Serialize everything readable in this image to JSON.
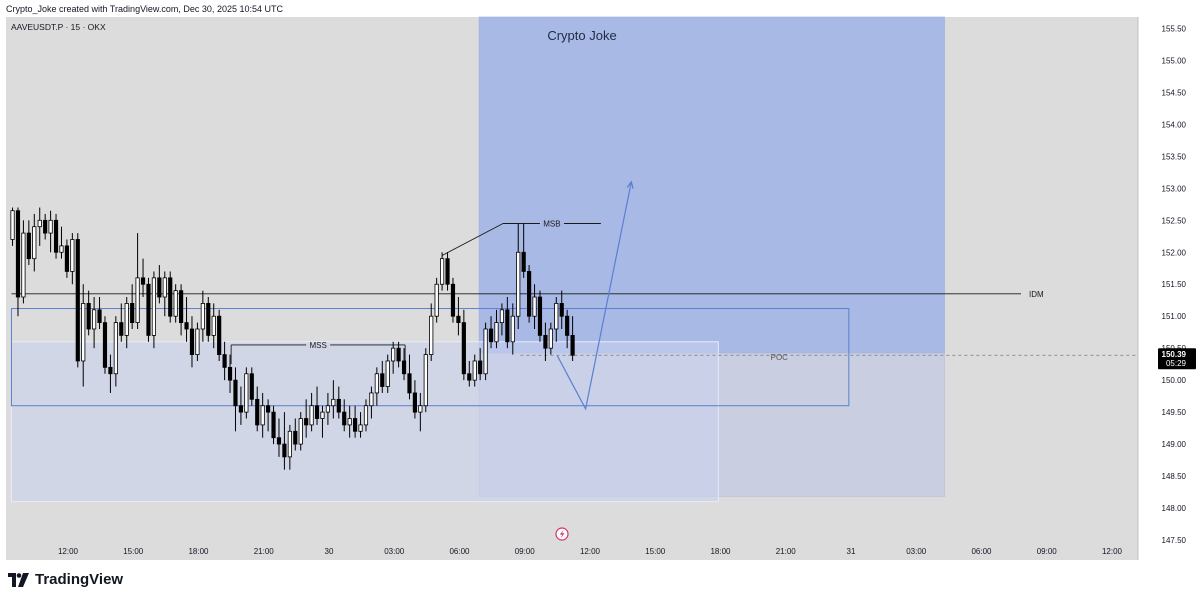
{
  "header": {
    "attribution": "Crypto_Joke created with TradingView.com, Dec 30, 2025 10:54 UTC"
  },
  "footer": {
    "brand": "TradingView"
  },
  "colors": {
    "background": "#dcdcdc",
    "candle_up": "#ffffff",
    "candle_down": "#000000",
    "zone_fill": "#a9b9e6",
    "range_fill": "#c7cde0",
    "arrow": "#5b7fd0"
  },
  "chart_data": {
    "type": "candlestick",
    "symbol_line": "AAVEUSDT.P · 15 · OKX",
    "watermark": "Crypto Joke",
    "ylim": [
      147.5,
      155.75
    ],
    "x_ticks": [
      {
        "label": "12:00",
        "h": 12
      },
      {
        "label": "15:00",
        "h": 15
      },
      {
        "label": "18:00",
        "h": 18
      },
      {
        "label": "21:00",
        "h": 21
      },
      {
        "label": "30",
        "h": 24
      },
      {
        "label": "03:00",
        "h": 27
      },
      {
        "label": "06:00",
        "h": 30
      },
      {
        "label": "09:00",
        "h": 33
      },
      {
        "label": "12:00",
        "h": 36
      },
      {
        "label": "15:00",
        "h": 39
      },
      {
        "label": "18:00",
        "h": 42
      },
      {
        "label": "21:00",
        "h": 45
      },
      {
        "label": "31",
        "h": 48
      },
      {
        "label": "03:00",
        "h": 51
      },
      {
        "label": "06:00",
        "h": 54
      },
      {
        "label": "09:00",
        "h": 57
      },
      {
        "label": "12:00",
        "h": 60
      }
    ],
    "y_ticks": [
      "147.50",
      "148.00",
      "148.50",
      "149.00",
      "149.50",
      "150.00",
      "150.50",
      "151.00",
      "151.50",
      "152.00",
      "152.50",
      "153.00",
      "153.50",
      "154.00",
      "154.50",
      "155.00",
      "155.50"
    ],
    "current_price": {
      "label": "150.39",
      "countdown": "05:29",
      "value": 150.39
    },
    "annotations": [
      {
        "text": "MSS",
        "h1": 19.5,
        "h2": 27.5,
        "price": 150.55
      },
      {
        "text": "MSB",
        "h1": 32.0,
        "h2": 36.5,
        "price": 152.45
      },
      {
        "text": "IDM",
        "h1": 9.4,
        "h2": 56.0,
        "price": 151.35
      },
      {
        "text": "POC",
        "h1": 32.8,
        "h2": 45.5,
        "price": 150.39
      }
    ],
    "zones": [
      {
        "name": "upper-blue-zone",
        "h1": 30.9,
        "h2": 52.3,
        "top": 155.75,
        "bottom": 150.42,
        "kind": "blue"
      },
      {
        "name": "lower-grey-zone",
        "h1": 30.9,
        "h2": 52.3,
        "top": 150.42,
        "bottom": 148.18,
        "kind": "grey"
      },
      {
        "name": "left-range-zone",
        "h1": 9.4,
        "h2": 41.9,
        "top": 150.6,
        "bottom": 148.1,
        "kind": "light"
      },
      {
        "name": "consolidation-box",
        "h1": 9.4,
        "h2": 47.9,
        "top": 151.12,
        "bottom": 149.6,
        "kind": "outline"
      }
    ],
    "projection": [
      {
        "h": 34.5,
        "price": 150.38
      },
      {
        "h": 35.8,
        "price": 149.55
      },
      {
        "h": 37.9,
        "price": 153.1
      }
    ],
    "ohlc_start_hour": 9.45,
    "ohlc_step_hours": 0.25,
    "ohlc": [
      [
        152.2,
        152.7,
        152.1,
        152.65
      ],
      [
        152.65,
        152.7,
        151.0,
        151.3
      ],
      [
        151.3,
        152.5,
        151.2,
        152.3
      ],
      [
        152.3,
        152.5,
        151.8,
        151.9
      ],
      [
        151.9,
        152.6,
        151.7,
        152.4
      ],
      [
        152.4,
        152.7,
        152.1,
        152.5
      ],
      [
        152.5,
        152.6,
        152.2,
        152.3
      ],
      [
        152.3,
        152.65,
        152.0,
        152.5
      ],
      [
        152.5,
        152.6,
        151.9,
        152.0
      ],
      [
        152.0,
        152.4,
        151.9,
        152.1
      ],
      [
        152.1,
        152.2,
        151.6,
        151.7
      ],
      [
        151.7,
        152.3,
        151.5,
        152.2
      ],
      [
        152.2,
        152.3,
        150.2,
        150.3
      ],
      [
        150.3,
        151.5,
        149.9,
        151.2
      ],
      [
        151.2,
        151.4,
        150.7,
        150.8
      ],
      [
        150.8,
        151.3,
        150.5,
        151.1
      ],
      [
        151.1,
        151.3,
        150.8,
        150.9
      ],
      [
        150.9,
        151.0,
        150.1,
        150.2
      ],
      [
        150.2,
        150.4,
        149.8,
        150.1
      ],
      [
        150.1,
        151.0,
        149.9,
        150.9
      ],
      [
        150.9,
        151.2,
        150.6,
        150.7
      ],
      [
        150.7,
        151.3,
        150.5,
        151.2
      ],
      [
        151.2,
        151.5,
        150.8,
        150.9
      ],
      [
        150.9,
        152.3,
        150.8,
        151.6
      ],
      [
        151.6,
        151.9,
        151.3,
        151.5
      ],
      [
        151.5,
        151.6,
        150.6,
        150.7
      ],
      [
        150.7,
        151.7,
        150.5,
        151.6
      ],
      [
        151.6,
        151.8,
        151.2,
        151.3
      ],
      [
        151.3,
        151.7,
        151.0,
        151.6
      ],
      [
        151.6,
        151.7,
        150.9,
        151.0
      ],
      [
        151.0,
        151.5,
        150.9,
        151.4
      ],
      [
        151.4,
        151.5,
        150.7,
        150.9
      ],
      [
        150.9,
        151.3,
        150.6,
        150.8
      ],
      [
        150.8,
        151.0,
        150.2,
        150.4
      ],
      [
        150.4,
        150.9,
        150.3,
        150.8
      ],
      [
        150.8,
        151.4,
        150.6,
        151.2
      ],
      [
        151.2,
        151.3,
        150.6,
        150.7
      ],
      [
        150.7,
        151.2,
        150.5,
        151.0
      ],
      [
        151.0,
        151.1,
        150.3,
        150.4
      ],
      [
        150.4,
        150.6,
        150.0,
        150.2
      ],
      [
        150.2,
        150.4,
        149.8,
        150.0
      ],
      [
        150.0,
        150.2,
        149.2,
        149.6
      ],
      [
        149.6,
        149.9,
        149.3,
        149.5
      ],
      [
        149.5,
        150.2,
        149.4,
        150.1
      ],
      [
        150.1,
        150.2,
        149.6,
        149.7
      ],
      [
        149.7,
        149.9,
        149.2,
        149.3
      ],
      [
        149.3,
        149.8,
        149.1,
        149.6
      ],
      [
        149.6,
        149.7,
        149.2,
        149.5
      ],
      [
        149.5,
        149.6,
        149.0,
        149.1
      ],
      [
        149.1,
        149.4,
        148.8,
        149.0
      ],
      [
        149.0,
        149.5,
        148.6,
        148.8
      ],
      [
        148.8,
        149.3,
        148.6,
        149.2
      ],
      [
        149.2,
        149.4,
        148.9,
        149.0
      ],
      [
        149.0,
        149.5,
        148.9,
        149.4
      ],
      [
        149.4,
        149.7,
        149.1,
        149.3
      ],
      [
        149.3,
        149.8,
        149.2,
        149.6
      ],
      [
        149.6,
        149.9,
        149.3,
        149.4
      ],
      [
        149.4,
        149.6,
        149.1,
        149.5
      ],
      [
        149.5,
        149.8,
        149.3,
        149.6
      ],
      [
        149.6,
        150.0,
        149.4,
        149.7
      ],
      [
        149.7,
        149.9,
        149.4,
        149.5
      ],
      [
        149.5,
        149.7,
        149.2,
        149.3
      ],
      [
        149.3,
        149.6,
        149.1,
        149.4
      ],
      [
        149.4,
        149.6,
        149.1,
        149.2
      ],
      [
        149.2,
        149.5,
        149.1,
        149.3
      ],
      [
        149.3,
        149.7,
        149.2,
        149.6
      ],
      [
        149.6,
        149.9,
        149.4,
        149.8
      ],
      [
        149.8,
        150.2,
        149.6,
        150.1
      ],
      [
        150.1,
        150.3,
        149.8,
        149.9
      ],
      [
        149.9,
        150.4,
        149.8,
        150.3
      ],
      [
        150.3,
        150.6,
        150.1,
        150.5
      ],
      [
        150.5,
        150.6,
        150.2,
        150.3
      ],
      [
        150.3,
        150.5,
        150.0,
        150.1
      ],
      [
        150.1,
        150.4,
        149.7,
        149.8
      ],
      [
        149.8,
        150.0,
        149.4,
        149.5
      ],
      [
        149.5,
        149.8,
        149.2,
        149.6
      ],
      [
        149.6,
        150.5,
        149.5,
        150.4
      ],
      [
        150.4,
        151.2,
        150.3,
        151.0
      ],
      [
        151.0,
        151.6,
        150.9,
        151.5
      ],
      [
        151.5,
        152.0,
        151.4,
        151.9
      ],
      [
        151.9,
        152.0,
        151.4,
        151.5
      ],
      [
        151.5,
        151.6,
        150.9,
        151.0
      ],
      [
        151.0,
        151.3,
        150.7,
        150.9
      ],
      [
        150.9,
        151.1,
        150.0,
        150.1
      ],
      [
        150.1,
        150.3,
        149.9,
        150.0
      ],
      [
        150.0,
        150.4,
        149.9,
        150.3
      ],
      [
        150.3,
        150.5,
        150.0,
        150.1
      ],
      [
        150.1,
        150.9,
        150.0,
        150.8
      ],
      [
        150.8,
        151.0,
        150.5,
        150.6
      ],
      [
        150.6,
        151.1,
        150.5,
        150.9
      ],
      [
        150.9,
        151.2,
        150.7,
        151.1
      ],
      [
        151.1,
        151.3,
        150.5,
        150.6
      ],
      [
        150.6,
        151.2,
        150.4,
        151.0
      ],
      [
        151.0,
        152.45,
        150.8,
        152.0
      ],
      [
        152.0,
        152.45,
        151.6,
        151.7
      ],
      [
        151.7,
        151.8,
        150.9,
        151.0
      ],
      [
        151.0,
        151.5,
        150.8,
        151.3
      ],
      [
        151.3,
        151.4,
        150.6,
        150.7
      ],
      [
        150.7,
        150.9,
        150.3,
        150.5
      ],
      [
        150.5,
        150.9,
        150.4,
        150.8
      ],
      [
        150.8,
        151.3,
        150.6,
        151.2
      ],
      [
        151.2,
        151.4,
        150.8,
        151.0
      ],
      [
        151.0,
        151.1,
        150.5,
        150.7
      ],
      [
        150.7,
        151.0,
        150.3,
        150.39
      ]
    ]
  }
}
